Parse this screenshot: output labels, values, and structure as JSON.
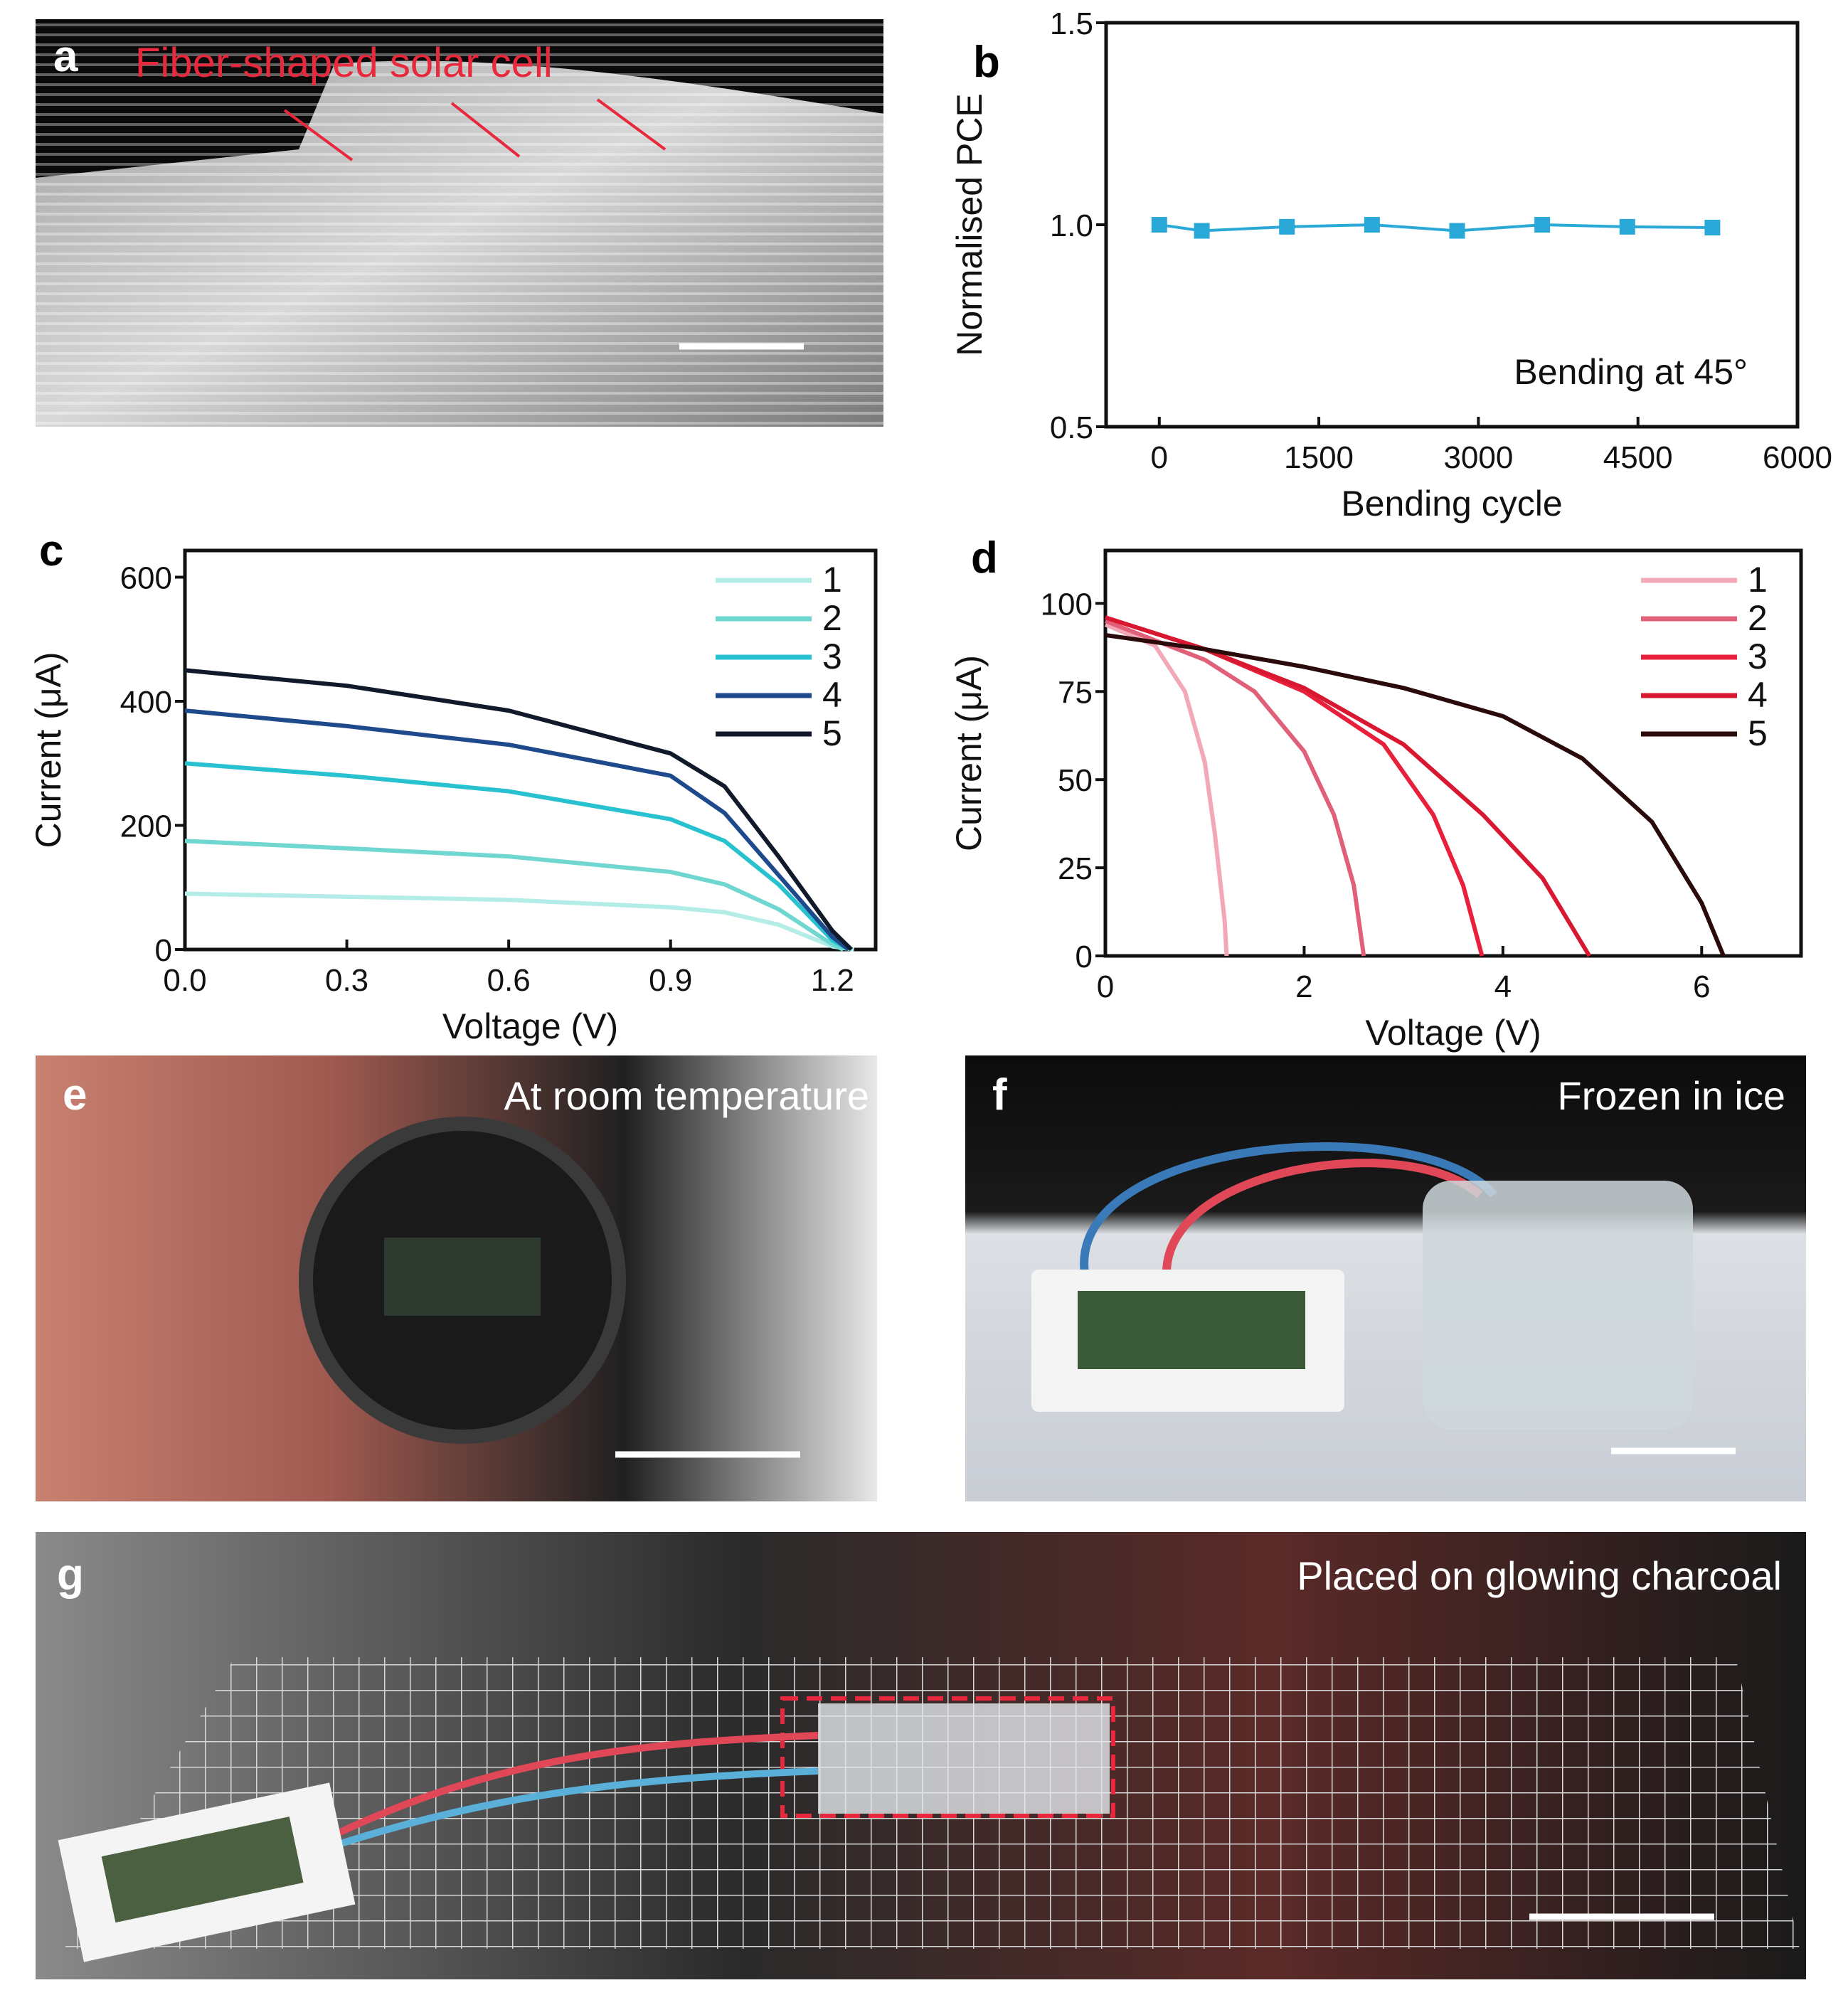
{
  "panels": {
    "a": {
      "label": "a",
      "caption": "Fiber-shaped solar cell"
    },
    "b": {
      "label": "b"
    },
    "c": {
      "label": "c"
    },
    "d": {
      "label": "d"
    },
    "e": {
      "label": "e",
      "caption": "At room temperature"
    },
    "f": {
      "label": "f",
      "caption": "Frozen in ice"
    },
    "g": {
      "label": "g",
      "caption": "Placed on glowing charcoal"
    }
  },
  "colors": {
    "caption_red": "#e8283c",
    "marker_blue": "#2aa8d8"
  },
  "chart_data": [
    {
      "id": "b",
      "type": "line",
      "xlabel": "Bending cycle",
      "ylabel": "Normalised PCE",
      "xlim": [
        -500,
        6000
      ],
      "ylim": [
        0.5,
        1.5
      ],
      "xticks": [
        "0",
        "1500",
        "3000",
        "4500",
        "6000"
      ],
      "xtick_values": [
        0,
        1500,
        3000,
        4500,
        6000
      ],
      "yticks": [
        "0.5",
        "1.0",
        "1.5"
      ],
      "ytick_values": [
        0.5,
        1.0,
        1.5
      ],
      "annotation": "Bending at 45°",
      "series": [
        {
          "name": "PCE",
          "color": "#2aa8d8",
          "x": [
            0,
            400,
            1200,
            2000,
            2800,
            3600,
            4400,
            5200
          ],
          "y": [
            1.0,
            0.985,
            0.995,
            1.0,
            0.985,
            1.0,
            0.995,
            0.993
          ]
        }
      ]
    },
    {
      "id": "c",
      "type": "line",
      "xlabel": "Voltage (V)",
      "ylabel": "Current (μA)",
      "xlim": [
        0,
        1.28
      ],
      "ylim": [
        0,
        643
      ],
      "xticks": [
        "0.0",
        "0.3",
        "0.6",
        "0.9",
        "1.2"
      ],
      "xtick_values": [
        0,
        0.3,
        0.6,
        0.9,
        1.2
      ],
      "yticks": [
        "0",
        "200",
        "400",
        "600"
      ],
      "ytick_values": [
        0,
        200,
        400,
        600
      ],
      "legend": "top-right",
      "series": [
        {
          "name": "1",
          "color": "#b4ece8",
          "x": [
            0,
            0.3,
            0.6,
            0.9,
            1.0,
            1.1,
            1.2,
            1.24
          ],
          "y": [
            90,
            85,
            80,
            68,
            60,
            40,
            5,
            0
          ]
        },
        {
          "name": "2",
          "color": "#6fd6d0",
          "x": [
            0,
            0.3,
            0.6,
            0.9,
            1.0,
            1.1,
            1.2,
            1.22
          ],
          "y": [
            175,
            163,
            150,
            125,
            105,
            65,
            8,
            0
          ]
        },
        {
          "name": "3",
          "color": "#27c1d0",
          "x": [
            0,
            0.3,
            0.6,
            0.9,
            1.0,
            1.1,
            1.2,
            1.23
          ],
          "y": [
            300,
            280,
            255,
            210,
            175,
            105,
            15,
            0
          ]
        },
        {
          "name": "4",
          "color": "#1e4a8c",
          "x": [
            0,
            0.3,
            0.6,
            0.9,
            1.0,
            1.1,
            1.2,
            1.23
          ],
          "y": [
            385,
            360,
            330,
            280,
            220,
            120,
            20,
            0
          ]
        },
        {
          "name": "5",
          "color": "#111a2a",
          "x": [
            0,
            0.3,
            0.6,
            0.9,
            1.0,
            1.1,
            1.2,
            1.235
          ],
          "y": [
            450,
            425,
            385,
            316,
            263,
            150,
            30,
            0
          ]
        }
      ]
    },
    {
      "id": "d",
      "type": "line",
      "xlabel": "Voltage (V)",
      "ylabel": "Current (μA)",
      "xlim": [
        0,
        7
      ],
      "ylim": [
        0,
        115
      ],
      "xticks": [
        "0",
        "2",
        "4",
        "6"
      ],
      "xtick_values": [
        0,
        2,
        4,
        6
      ],
      "yticks": [
        "0",
        "25",
        "50",
        "75",
        "100"
      ],
      "ytick_values": [
        0,
        25,
        50,
        75,
        100
      ],
      "legend": "top-right",
      "series": [
        {
          "name": "1",
          "color": "#f2a8b8",
          "x": [
            0,
            0.5,
            0.8,
            1.0,
            1.1,
            1.2,
            1.22
          ],
          "y": [
            94,
            88,
            75,
            55,
            35,
            10,
            0
          ]
        },
        {
          "name": "2",
          "color": "#e0607a",
          "x": [
            0,
            1,
            1.5,
            2,
            2.3,
            2.5,
            2.6
          ],
          "y": [
            95,
            84,
            75,
            58,
            40,
            20,
            0
          ]
        },
        {
          "name": "3",
          "color": "#e8203c",
          "x": [
            0,
            1,
            2,
            2.8,
            3.3,
            3.6,
            3.79
          ],
          "y": [
            96,
            87,
            75,
            60,
            40,
            20,
            0
          ]
        },
        {
          "name": "4",
          "color": "#d81830",
          "x": [
            0,
            1,
            2,
            3,
            3.8,
            4.4,
            4.87
          ],
          "y": [
            96,
            87,
            76,
            60,
            40,
            22,
            0
          ]
        },
        {
          "name": "5",
          "color": "#2a0a0a",
          "x": [
            0,
            1,
            2,
            3,
            4,
            4.8,
            5.5,
            6,
            6.22
          ],
          "y": [
            91,
            87,
            82,
            76,
            68,
            56,
            38,
            15,
            0
          ]
        }
      ]
    }
  ]
}
